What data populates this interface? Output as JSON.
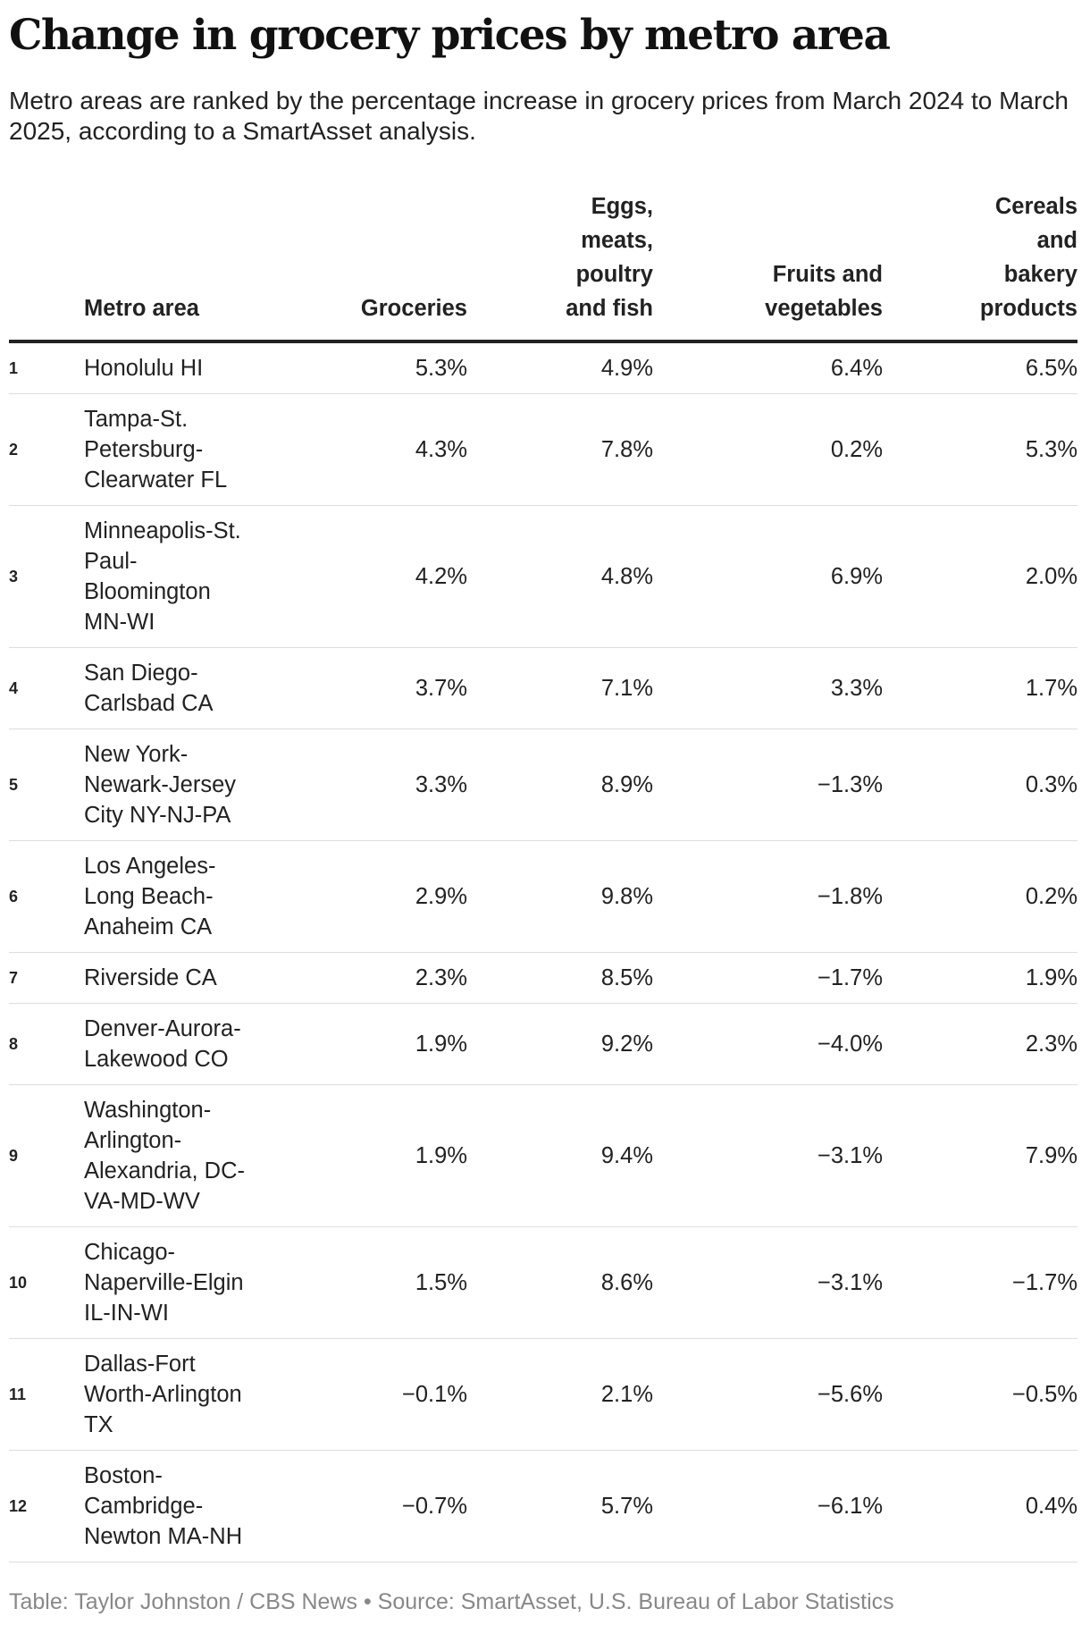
{
  "header": {
    "title": "Change in grocery prices by metro area",
    "subtitle": "Metro areas are ranked by the percentage increase in grocery prices from March 2024 to March 2025, according to a SmartAsset analysis."
  },
  "table": {
    "columns": [
      "",
      "Metro area",
      "Groceries",
      "Eggs, meats, poultry and fish",
      "Fruits and vegetables",
      "Cereals and bakery products"
    ],
    "rows": [
      [
        "1",
        "Honolulu HI",
        "5.3%",
        "4.9%",
        "6.4%",
        "6.5%"
      ],
      [
        "2",
        "Tampa-St. Petersburg-Clearwater FL",
        "4.3%",
        "7.8%",
        "0.2%",
        "5.3%"
      ],
      [
        "3",
        "Minneapolis-St. Paul-Bloomington MN-WI",
        "4.2%",
        "4.8%",
        "6.9%",
        "2.0%"
      ],
      [
        "4",
        "San Diego-Carlsbad CA",
        "3.7%",
        "7.1%",
        "3.3%",
        "1.7%"
      ],
      [
        "5",
        "New York-Newark-Jersey City NY-NJ-PA",
        "3.3%",
        "8.9%",
        "−1.3%",
        "0.3%"
      ],
      [
        "6",
        "Los Angeles-Long Beach-Anaheim CA",
        "2.9%",
        "9.8%",
        "−1.8%",
        "0.2%"
      ],
      [
        "7",
        "Riverside CA",
        "2.3%",
        "8.5%",
        "−1.7%",
        "1.9%"
      ],
      [
        "8",
        "Denver-Aurora-Lakewood CO",
        "1.9%",
        "9.2%",
        "−4.0%",
        "2.3%"
      ],
      [
        "9",
        "Washington-Arlington-Alexandria, DC-VA-MD-WV",
        "1.9%",
        "9.4%",
        "−3.1%",
        "7.9%"
      ],
      [
        "10",
        "Chicago-Naperville-Elgin IL-IN-WI",
        "1.5%",
        "8.6%",
        "−3.1%",
        "−1.7%"
      ],
      [
        "11",
        "Dallas-Fort Worth-Arlington TX",
        "−0.1%",
        "2.1%",
        "−5.6%",
        "−0.5%"
      ],
      [
        "12",
        "Boston-Cambridge-Newton MA-NH",
        "−0.7%",
        "5.7%",
        "−6.1%",
        "0.4%"
      ]
    ]
  },
  "footer": "Table: Taylor Johnston / CBS News • Source: SmartAsset, U.S. Bureau of Labor Statistics"
}
